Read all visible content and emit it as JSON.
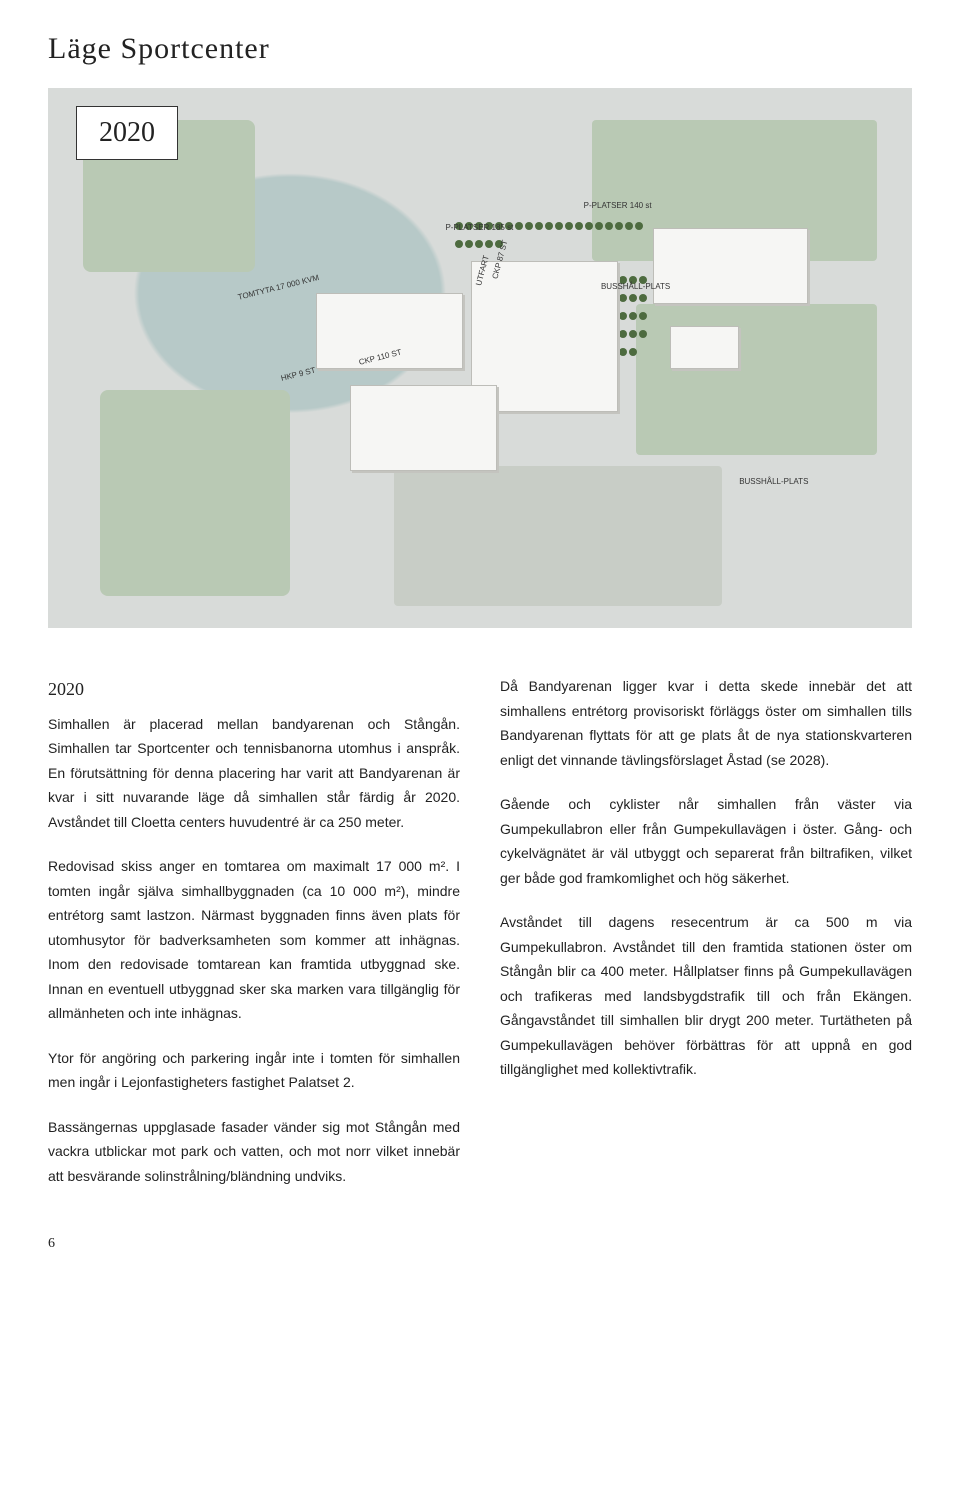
{
  "page": {
    "title": "Läge Sportcenter",
    "year_badge": "2020",
    "subhead": "2020",
    "page_number": "6"
  },
  "map": {
    "labels": {
      "tomtyta": "TOMTYTA 17 000 KVM",
      "p185": "P-PLATSER 185 st",
      "p140": "P-PLATSER 140 st",
      "ckp87": "CKP 87 ST",
      "ckp110": "CKP 110 ST",
      "hkp9": "HKP 9 ST",
      "bushall1": "BUSSHÅLL-PLATS",
      "bushall2": "BUSSHÅLL-PLATS",
      "utfart": "UTFART"
    },
    "colors": {
      "water": "#b7c9c8",
      "base": "#d8dbd9",
      "grass": "#b9c9b4",
      "building": "#f6f6f4",
      "tree": "#4d6b3f"
    }
  },
  "text": {
    "left": [
      "Simhallen är placerad mellan bandyarenan och Stångån. Simhallen tar Sportcenter och tennisbanorna utomhus i anspråk. En förutsättning för denna placering har varit att Bandyarenan är kvar i sitt nuvarande läge då simhallen står färdig år 2020. Avståndet till Cloetta centers huvudentré är ca 250 meter.",
      "Redovisad skiss anger en tomtarea om maximalt 17 000 m². I tomten ingår själva simhallbyggnaden (ca 10 000 m²), mindre entrétorg samt lastzon. Närmast byggnaden finns även plats för utomhusytor för badverksamheten som kommer att inhägnas. Inom den redovisade tomtarean kan framtida utbyggnad ske. Innan en eventuell utbyggnad sker ska marken vara tillgänglig för allmänheten och inte inhägnas.",
      "Ytor för angöring och parkering ingår inte i tomten för simhallen men ingår i Lejonfastigheters fastighet Palatset 2.",
      "Bassängernas uppglasade fasader vänder sig mot Stångån med vackra utblickar mot park och vatten, och mot norr vilket innebär att besvärande solinstrålning/bländning undviks."
    ],
    "right": [
      "Då Bandyarenan ligger kvar i detta skede innebär det att simhallens entrétorg provisoriskt förläggs öster om simhallen tills Bandyarenan flyttats för att ge plats åt de nya stationskvarteren enligt det vinnande tävlingsförslaget Åstad (se 2028).",
      "Gående och cyklister når simhallen från väster via Gumpekullabron eller från Gumpekullavägen i öster. Gång- och cykelvägnätet är väl utbyggt och separerat från biltrafiken, vilket ger både god framkomlighet och hög säkerhet.",
      "Avståndet till dagens resecentrum är ca 500 m via Gumpekullabron. Avståndet till den framtida stationen öster om Stångån blir ca 400 meter. Hållplatser finns på Gumpekullavägen och trafikeras med landsbygdstrafik till och från Ekängen. Gångavståndet till simhallen blir drygt 200 meter. Turtätheten på Gumpekullavägen behöver förbättras för att uppnå en god tillgänglighet med kollektivtrafik."
    ]
  }
}
